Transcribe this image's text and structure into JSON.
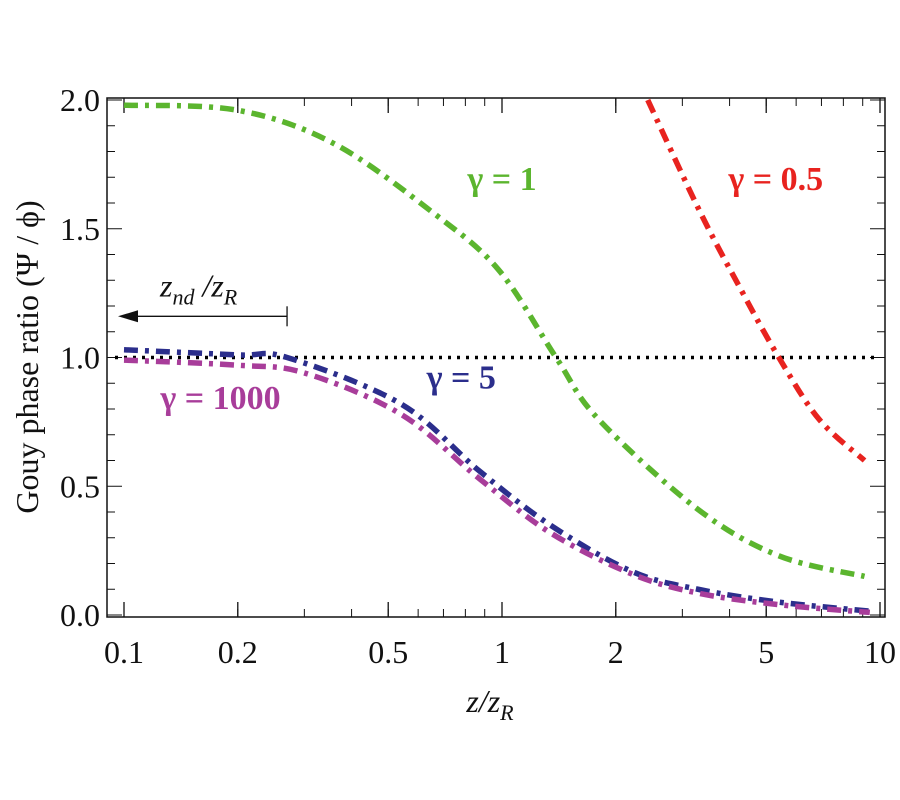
{
  "chart_data": {
    "type": "line",
    "title": "",
    "xlabel": "z/z",
    "xlabel_sub": "R",
    "ylabel": "Gouy  phase  ratio (Ψ / ϕ)",
    "xscale": "log",
    "xlim": [
      0.1,
      10
    ],
    "ylim": [
      0,
      2
    ],
    "xticks": [
      0.1,
      0.2,
      0.5,
      1,
      2,
      5,
      10
    ],
    "xtick_labels": [
      "0.1",
      "0.2",
      "0.5",
      "1",
      "2",
      "5",
      "10"
    ],
    "yticks": [
      0,
      0.5,
      1,
      1.5,
      2
    ],
    "ytick_labels": [
      "0.0",
      "0.5",
      "1.0",
      "1.5",
      "2.0"
    ],
    "reference_line": {
      "y": 1.0,
      "style": "dotted",
      "color": "#000000"
    },
    "annotation": {
      "text": "z",
      "sub1": "nd",
      "mid": " /z",
      "sub2": "R",
      "arrow_from_x": 0.27,
      "arrow_to_x": 0.1,
      "y": 1.16
    },
    "series": [
      {
        "name": "γ = 1",
        "color": "#5bb52e",
        "label_x": 1.0,
        "label_y": 1.65,
        "x": [
          0.1,
          0.2,
          0.36,
          0.66,
          0.98,
          1.39,
          1.8,
          3.3,
          5.4,
          9.1
        ],
        "y": [
          1.98,
          1.96,
          1.83,
          1.56,
          1.34,
          1.0,
          0.76,
          0.41,
          0.23,
          0.15
        ]
      },
      {
        "name": "γ = 0.5",
        "color": "#e8231f",
        "label_x": 5.3,
        "label_y": 1.65,
        "x": [
          2.43,
          3.33,
          4.3,
          5.4,
          6.9,
          9.1
        ],
        "y": [
          2.0,
          1.57,
          1.26,
          1.0,
          0.76,
          0.6
        ]
      },
      {
        "name": "γ = 5",
        "color": "#2b2e8c",
        "label_x": 0.78,
        "label_y": 0.88,
        "x": [
          0.1,
          0.2,
          0.27,
          0.54,
          0.87,
          1.34,
          2.2,
          3.3,
          5.4,
          9.4
        ],
        "y": [
          1.03,
          1.01,
          1.0,
          0.82,
          0.56,
          0.35,
          0.17,
          0.1,
          0.05,
          0.015
        ]
      },
      {
        "name": "γ = 1000",
        "color": "#a83d9a",
        "label_x": 0.18,
        "label_y": 0.8,
        "x": [
          0.1,
          0.2,
          0.3,
          0.54,
          0.87,
          1.34,
          2.2,
          3.3,
          5.4,
          9.4
        ],
        "y": [
          0.99,
          0.97,
          0.94,
          0.78,
          0.53,
          0.32,
          0.16,
          0.085,
          0.04,
          0.01
        ]
      }
    ]
  }
}
